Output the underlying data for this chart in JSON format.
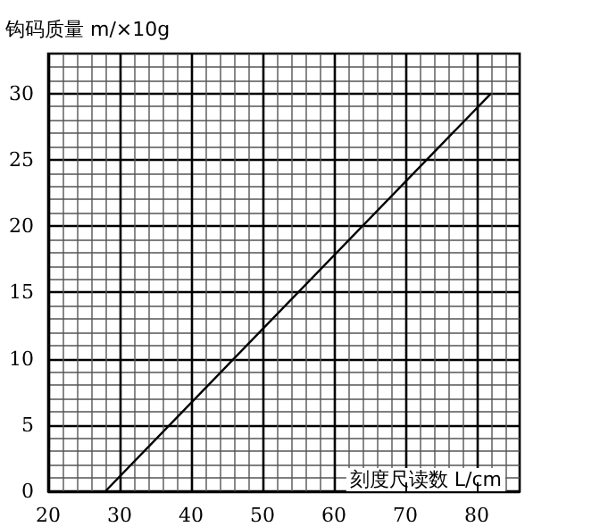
{
  "chart_data": {
    "type": "line",
    "xlabel": "刻度尺读数 L/cm",
    "ylabel": "钩码质量 m/×10g",
    "series": [
      {
        "color": "#000000",
        "x": [
          28,
          82
        ],
        "values": [
          0,
          30
        ]
      }
    ],
    "xlim": [
      20,
      86
    ],
    "ylim": [
      0,
      33
    ],
    "xticks": [
      20,
      30,
      40,
      50,
      60,
      70,
      80
    ],
    "yticks": [
      0,
      5,
      10,
      15,
      20,
      25,
      30
    ],
    "grid": true,
    "marker": "none",
    "line_style": "solid"
  }
}
